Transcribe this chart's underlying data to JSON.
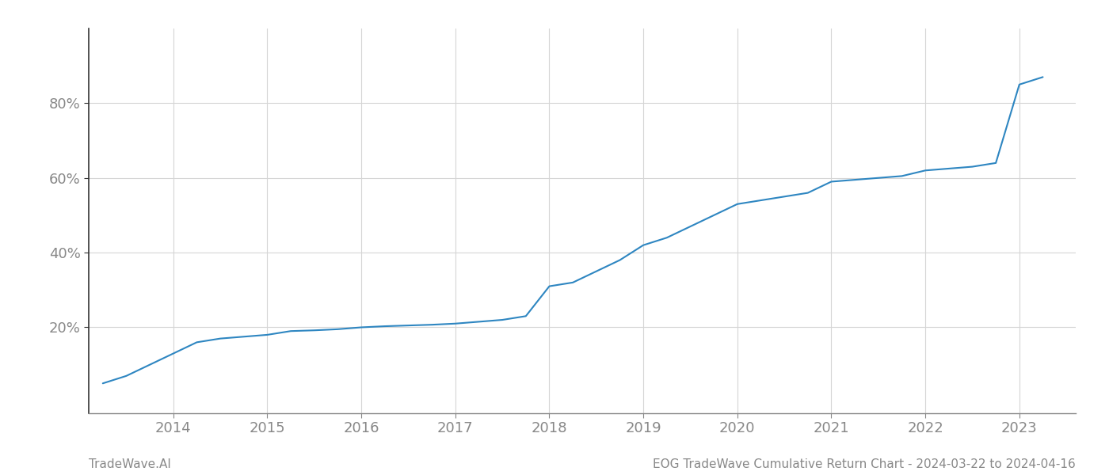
{
  "bottom_left_label": "TradeWave.AI",
  "bottom_right_label": "EOG TradeWave Cumulative Return Chart - 2024-03-22 to 2024-04-16",
  "line_color": "#2e86c1",
  "background_color": "#ffffff",
  "grid_color": "#d5d5d5",
  "spine_color": "#333333",
  "axis_color": "#888888",
  "label_color": "#888888",
  "x_years": [
    2013.25,
    2013.5,
    2013.75,
    2014.0,
    2014.25,
    2014.5,
    2014.75,
    2015.0,
    2015.25,
    2015.5,
    2015.75,
    2016.0,
    2016.25,
    2016.5,
    2016.75,
    2017.0,
    2017.25,
    2017.5,
    2017.75,
    2018.0,
    2018.25,
    2018.5,
    2018.75,
    2019.0,
    2019.25,
    2019.5,
    2019.75,
    2020.0,
    2020.25,
    2020.5,
    2020.75,
    2021.0,
    2021.25,
    2021.5,
    2021.75,
    2022.0,
    2022.1,
    2022.25,
    2022.5,
    2022.75,
    2023.0,
    2023.25
  ],
  "y_values": [
    5,
    7,
    10,
    13,
    16,
    17,
    17.5,
    18,
    19,
    19.2,
    19.5,
    20,
    20.3,
    20.5,
    20.7,
    21,
    21.5,
    22,
    23,
    31,
    32,
    35,
    38,
    42,
    44,
    47,
    50,
    53,
    54,
    55,
    56,
    59,
    59.5,
    60,
    60.5,
    62,
    62.2,
    62.5,
    63,
    64,
    85,
    87
  ],
  "x_ticks": [
    2014,
    2015,
    2016,
    2017,
    2018,
    2019,
    2020,
    2021,
    2022,
    2023
  ],
  "y_ticks": [
    20,
    40,
    60,
    80
  ],
  "ylim": [
    -3,
    100
  ],
  "xlim": [
    2013.1,
    2023.6
  ]
}
